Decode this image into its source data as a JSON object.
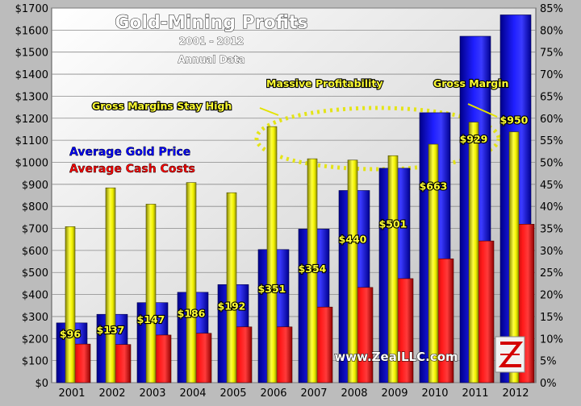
{
  "chart_data": {
    "type": "bar",
    "title": "Gold-Mining Profits",
    "subtitle": "2001 - 2012",
    "subtitle2": "Annual Data",
    "categories": [
      "2001",
      "2002",
      "2003",
      "2004",
      "2005",
      "2006",
      "2007",
      "2008",
      "2009",
      "2010",
      "2011",
      "2012"
    ],
    "series": [
      {
        "name": "Average Gold Price",
        "axis": "left",
        "color": "#0000ee",
        "values": [
          271,
          310,
          363,
          410,
          445,
          604,
          697,
          872,
          973,
          1225,
          1572,
          1669
        ]
      },
      {
        "name": "Average Cash Costs",
        "axis": "left",
        "color": "#ee0000",
        "values": [
          175,
          173,
          216,
          224,
          253,
          253,
          343,
          432,
          472,
          562,
          643,
          719
        ]
      },
      {
        "name": "Gross Margin",
        "axis": "right",
        "color": "#e8e800",
        "values": [
          35.4,
          44.2,
          40.5,
          45.4,
          43.1,
          58.1,
          50.8,
          50.5,
          51.5,
          54.1,
          59.1,
          56.9
        ]
      }
    ],
    "data_labels": [
      "$96",
      "$137",
      "$147",
      "$186",
      "$192",
      "$351",
      "$354",
      "$440",
      "$501",
      "$663",
      "$929",
      "$950"
    ],
    "ylim_left": [
      0,
      1700
    ],
    "yticks_left": [
      "$0",
      "$100",
      "$200",
      "$300",
      "$400",
      "$500",
      "$600",
      "$700",
      "$800",
      "$900",
      "$1000",
      "$1100",
      "$1200",
      "$1300",
      "$1400",
      "$1500",
      "$1600",
      "$1700"
    ],
    "ylim_right": [
      0,
      85
    ],
    "yticks_right": [
      "0%",
      "5%",
      "10%",
      "15%",
      "20%",
      "25%",
      "30%",
      "35%",
      "40%",
      "45%",
      "50%",
      "55%",
      "60%",
      "65%",
      "70%",
      "75%",
      "80%",
      "85%"
    ],
    "grid": true,
    "legend_placement": "upper-left",
    "annotations": [
      "Gross Margins Stay High",
      "Massive Profitability",
      "Gross Margin"
    ],
    "watermark": "www.ZealLLC.com"
  }
}
